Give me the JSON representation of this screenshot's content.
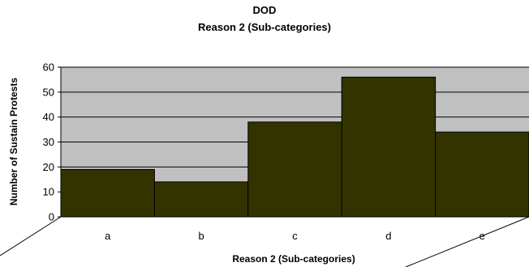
{
  "chart_data": {
    "type": "bar",
    "title": "DOD",
    "subtitle": "Reason 2 (Sub-categories)",
    "xlabel": "Reason 2 (Sub-categories)",
    "ylabel": "Number of Sustain Protests",
    "categories": [
      "a",
      "b",
      "c",
      "d",
      "e"
    ],
    "values": [
      19,
      14,
      38,
      56,
      34
    ],
    "ylim": [
      0,
      60
    ],
    "yticks": [
      0,
      10,
      20,
      30,
      40,
      50,
      60
    ],
    "grid": true,
    "legend": "none",
    "colors": {
      "bar_fill": "#333300",
      "plot_background": "#c0c0c0",
      "gridline": "#000000"
    }
  }
}
